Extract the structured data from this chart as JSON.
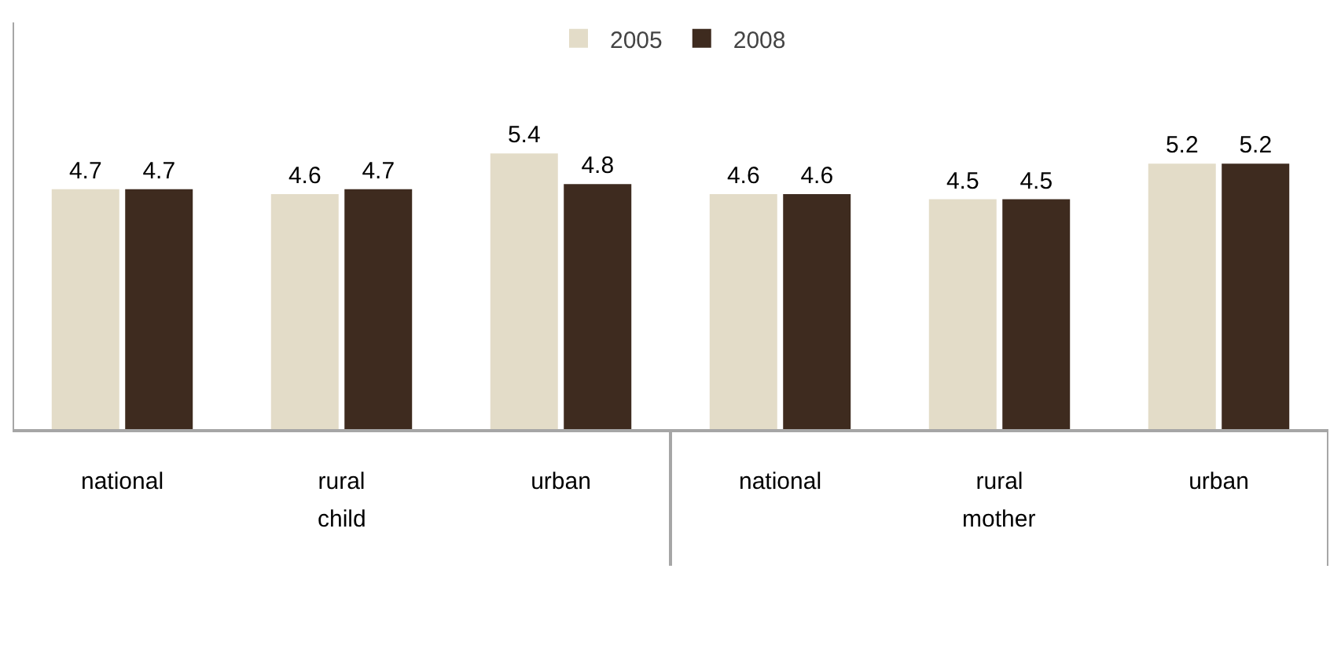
{
  "chart_data": {
    "type": "bar",
    "categories": [
      "national",
      "rural",
      "urban",
      "national",
      "rural",
      "urban"
    ],
    "series": [
      {
        "name": "2005",
        "color": "#e3dcc8",
        "values": [
          4.7,
          4.6,
          5.4,
          4.6,
          4.5,
          5.2
        ]
      },
      {
        "name": "2008",
        "color": "#3e2b1f",
        "values": [
          4.7,
          4.7,
          4.8,
          4.6,
          4.5,
          5.2
        ]
      }
    ],
    "annotations": [
      "child",
      "mother"
    ],
    "data_labels": true,
    "legend": "top",
    "grid": false
  }
}
